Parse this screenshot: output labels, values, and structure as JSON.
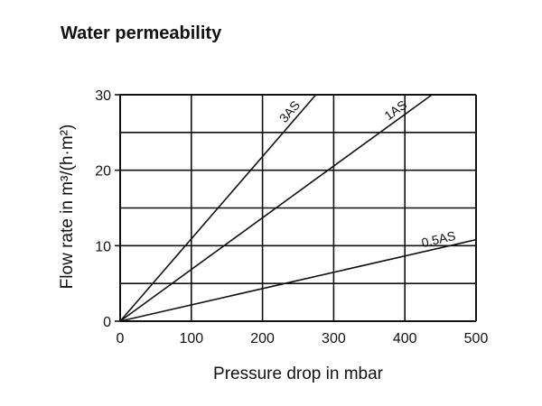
{
  "chart_data": {
    "type": "line",
    "title": "Water permeability",
    "xlabel": "Pressure drop in mbar",
    "ylabel": "Flow rate in m³/(h·m²)",
    "xlim": [
      0,
      500
    ],
    "ylim": [
      0,
      30
    ],
    "x_ticks": [
      "0",
      "100",
      "200",
      "300",
      "400",
      "500"
    ],
    "y_ticks": [
      "0",
      "10",
      "20",
      "30"
    ],
    "grid": true,
    "series": [
      {
        "name": "3AS",
        "x": [
          0,
          275
        ],
        "y": [
          0,
          30
        ]
      },
      {
        "name": "1AS",
        "x": [
          0,
          438
        ],
        "y": [
          0,
          30
        ]
      },
      {
        "name": "0.5AS",
        "x": [
          0,
          500
        ],
        "y": [
          0,
          10.8
        ]
      }
    ]
  },
  "colors": {
    "line": "#111111",
    "grid": "#111111"
  }
}
